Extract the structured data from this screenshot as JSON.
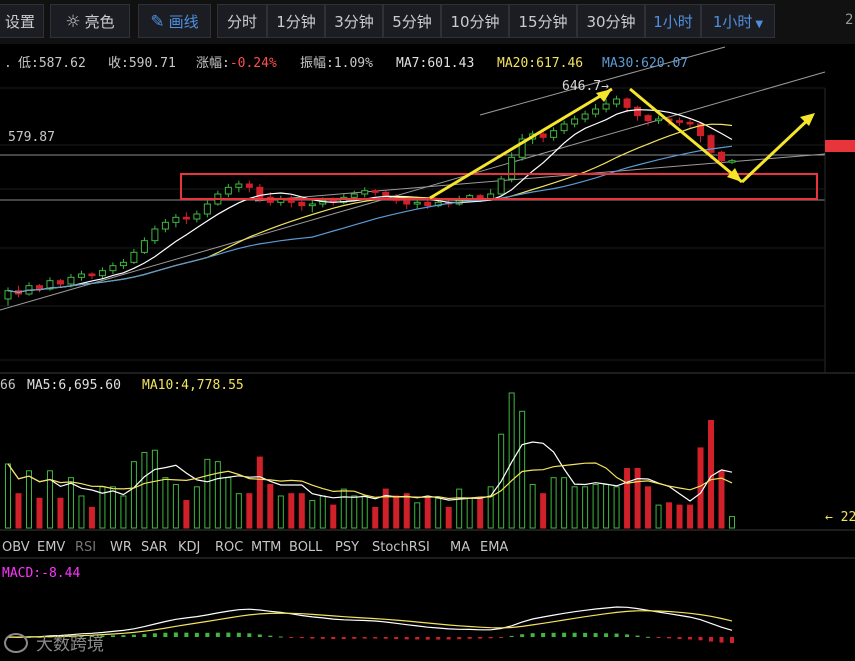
{
  "toolbar": {
    "settings": "设置",
    "theme": "亮色",
    "draw": "画线",
    "intervals": [
      "分时",
      "1分钟",
      "3分钟",
      "5分钟",
      "10分钟",
      "15分钟",
      "30分钟",
      "1小时"
    ],
    "active_interval": "1小时",
    "dropdown": "1小时",
    "clipped_right": "2"
  },
  "info": {
    "low_label": "低:",
    "low": "587.62",
    "close_label": "收:",
    "close": "590.71",
    "change_label": "涨幅:",
    "change": "-0.24%",
    "amp_label": "振幅:",
    "amp": "1.09%",
    "ma7_label": "MA7:",
    "ma7": "601.43",
    "ma20_label": "MA20:",
    "ma20": "617.46",
    "ma30_label": "MA30:",
    "ma30": "620.07"
  },
  "price_labels": {
    "level": "579.87",
    "high_marker": "646.7"
  },
  "volume_info": {
    "left_clip": "66",
    "ma5_label": "MA5:",
    "ma5": "6,695.60",
    "ma10_label": "MA10:",
    "ma10": "4,778.55",
    "right_marker": "← 22"
  },
  "indicator_tabs": [
    "OBV",
    "EMV",
    "RSI",
    "WR",
    "SAR",
    "KDJ",
    "ROC",
    "MTM",
    "BOLL",
    "PSY",
    "StochRSI",
    "MA",
    "EMA"
  ],
  "active_indicator": "RSI",
  "macd": {
    "label": "MACD:",
    "value": "-8.44"
  },
  "watermark": "大数跨境",
  "colors": {
    "bg": "#000000",
    "up": "#3fb83f",
    "down": "#d0202a",
    "ma7": "#ffffff",
    "ma20": "#f2e35c",
    "ma30": "#5b9bd5",
    "macd": "#ff33ff",
    "annot_red": "#e8343b",
    "annot_yellow": "#f5e62b",
    "active": "#4e8fe0"
  },
  "chart_data": {
    "type": "candlestick",
    "interval": "1小时",
    "price_axis_label": "579.87",
    "high_label": "646.7",
    "candles": [
      [
        526,
        531,
        522,
        533
      ],
      [
        531,
        529,
        527,
        534
      ],
      [
        529,
        534,
        528,
        536
      ],
      [
        534,
        532,
        530,
        535
      ],
      [
        532,
        537,
        531,
        539
      ],
      [
        537,
        535,
        533,
        538
      ],
      [
        535,
        539,
        533,
        541
      ],
      [
        539,
        541,
        537,
        543
      ],
      [
        541,
        540,
        538,
        542
      ],
      [
        540,
        543,
        538,
        545
      ],
      [
        543,
        546,
        541,
        548
      ],
      [
        546,
        548,
        544,
        550
      ],
      [
        548,
        554,
        547,
        556
      ],
      [
        554,
        561,
        553,
        563
      ],
      [
        561,
        568,
        559,
        570
      ],
      [
        568,
        572,
        566,
        574
      ],
      [
        572,
        575,
        569,
        577
      ],
      [
        575,
        574,
        571,
        578
      ],
      [
        574,
        577,
        572,
        579
      ],
      [
        577,
        583,
        575,
        585
      ],
      [
        583,
        589,
        582,
        591
      ],
      [
        589,
        593,
        587,
        595
      ],
      [
        593,
        595,
        590,
        597
      ],
      [
        595,
        593,
        590,
        597
      ],
      [
        593,
        587,
        584,
        595
      ],
      [
        587,
        584,
        582,
        590
      ],
      [
        584,
        586,
        582,
        588
      ],
      [
        586,
        584,
        581,
        588
      ],
      [
        584,
        582,
        579,
        586
      ],
      [
        582,
        583,
        578,
        585
      ],
      [
        583,
        585,
        581,
        587
      ],
      [
        585,
        584,
        582,
        587
      ],
      [
        584,
        587,
        583,
        589
      ],
      [
        587,
        589,
        585,
        591
      ],
      [
        589,
        591,
        587,
        593
      ],
      [
        591,
        590,
        588,
        592
      ],
      [
        590,
        587,
        585,
        591
      ],
      [
        587,
        585,
        583,
        589
      ],
      [
        585,
        583,
        580,
        587
      ],
      [
        583,
        584,
        580,
        586
      ],
      [
        584,
        582,
        580,
        585
      ],
      [
        582,
        584,
        581,
        586
      ],
      [
        584,
        583,
        581,
        585
      ],
      [
        583,
        586,
        582,
        588
      ],
      [
        586,
        588,
        584,
        589
      ],
      [
        588,
        586,
        584,
        589
      ],
      [
        586,
        589,
        585,
        592
      ],
      [
        589,
        598,
        588,
        600
      ],
      [
        598,
        611,
        596,
        614
      ],
      [
        611,
        622,
        609,
        625
      ],
      [
        622,
        625,
        619,
        627
      ],
      [
        625,
        623,
        620,
        627
      ],
      [
        623,
        627,
        621,
        629
      ],
      [
        627,
        631,
        625,
        633
      ],
      [
        631,
        634,
        629,
        636
      ],
      [
        634,
        637,
        632,
        639
      ],
      [
        637,
        640,
        635,
        643
      ],
      [
        640,
        643,
        638,
        646
      ],
      [
        643,
        646,
        641,
        648
      ],
      [
        646,
        641,
        638,
        647
      ],
      [
        641,
        636,
        633,
        642
      ],
      [
        636,
        633,
        630,
        637
      ],
      [
        633,
        634,
        631,
        636
      ],
      [
        634,
        633,
        630,
        636
      ],
      [
        633,
        632,
        630,
        635
      ],
      [
        632,
        631,
        629,
        634
      ],
      [
        631,
        624,
        620,
        632
      ],
      [
        624,
        614,
        610,
        625
      ],
      [
        614,
        609,
        607,
        615
      ],
      [
        609,
        609,
        607,
        610
      ]
    ],
    "ma7_last": 601.43,
    "ma20_last": 617.46,
    "ma30_last": 620.07,
    "volume": {
      "ma5": 6695.6,
      "ma10": 4778.55
    },
    "macd_last": -8.44
  }
}
